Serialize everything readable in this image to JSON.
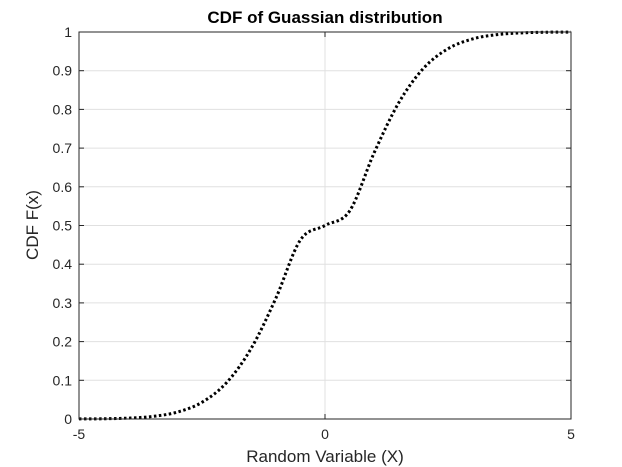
{
  "chart_data": {
    "type": "line",
    "title": "CDF of Guassian distribution",
    "xlabel": "Random Variable (X)",
    "ylabel": "CDF F(x)",
    "xlim": [
      -5,
      5
    ],
    "ylim": [
      0,
      1
    ],
    "xticks": [
      -5,
      0,
      5
    ],
    "xtick_labels": [
      "-5",
      "0",
      "5"
    ],
    "yticks": [
      0,
      0.1,
      0.2,
      0.3,
      0.4,
      0.5,
      0.6,
      0.7,
      0.8,
      0.9,
      1
    ],
    "ytick_labels": [
      "0",
      "0.1",
      "0.2",
      "0.3",
      "0.4",
      "0.5",
      "0.6",
      "0.7",
      "0.8",
      "0.9",
      "1"
    ],
    "grid": true,
    "line_style": "dotted",
    "colors": {
      "line": "#000000",
      "grid": "#e0e0e0",
      "axes": "#262626"
    },
    "series": [
      {
        "x": [
          -5,
          -4.5,
          -4,
          -3.5,
          -3,
          -2.5,
          -2,
          -1.5,
          -1,
          -0.5,
          0,
          0.5,
          1,
          1.5,
          2,
          2.5,
          3,
          3.5,
          4,
          4.5,
          5
        ],
        "values": [
          0.0002,
          0.0006,
          0.0023,
          0.0067,
          0.0179,
          0.0432,
          0.0941,
          0.1826,
          0.3118,
          0.4625,
          0.5,
          0.5375,
          0.6882,
          0.8174,
          0.9059,
          0.9568,
          0.9821,
          0.9933,
          0.9977,
          0.9994,
          0.9998
        ]
      }
    ]
  }
}
